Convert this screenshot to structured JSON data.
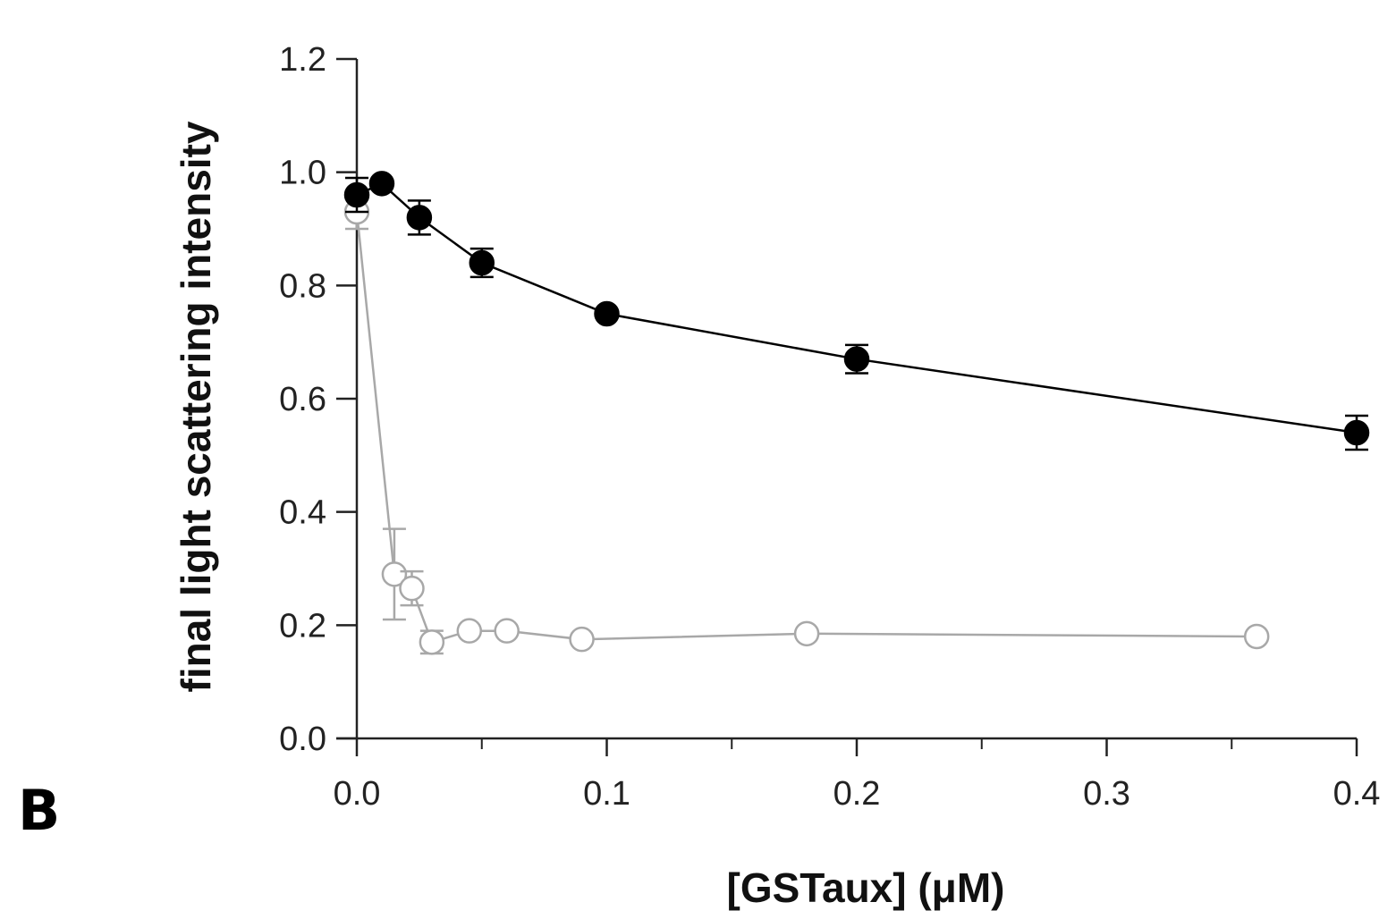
{
  "panel_label": "B",
  "chart_data": {
    "type": "scatter",
    "title": "",
    "xlabel": "[GSTaux] (μM)",
    "ylabel": "final light scattering intensity",
    "xlim": [
      0,
      0.4
    ],
    "ylim": [
      0,
      1.2
    ],
    "xticks": [
      0.0,
      0.1,
      0.2,
      0.3,
      0.4
    ],
    "xtick_labels": [
      "0.0",
      "0.1",
      "0.2",
      "0.3",
      "0.4"
    ],
    "yticks": [
      0.0,
      0.2,
      0.4,
      0.6,
      0.8,
      1.0,
      1.2
    ],
    "ytick_labels": [
      "0.0",
      "0.2",
      "0.4",
      "0.6",
      "0.8",
      "1.0",
      "1.2"
    ],
    "grid": false,
    "legend": "none",
    "series": [
      {
        "marker": "filled-circle",
        "color": "#000000",
        "connected": true,
        "x": [
          0.0,
          0.01,
          0.025,
          0.05,
          0.1,
          0.2,
          0.4
        ],
        "y": [
          0.96,
          0.98,
          0.92,
          0.84,
          0.75,
          0.67,
          0.54
        ],
        "error": [
          0.03,
          0.0,
          0.03,
          0.025,
          0.0,
          0.025,
          0.03
        ]
      },
      {
        "marker": "open-circle",
        "color": "#a8a8a8",
        "connected": true,
        "x": [
          0.0,
          0.015,
          0.022,
          0.03,
          0.045,
          0.06,
          0.09,
          0.18,
          0.36
        ],
        "y": [
          0.93,
          0.29,
          0.265,
          0.17,
          0.19,
          0.19,
          0.175,
          0.185,
          0.18
        ],
        "error": [
          0.03,
          0.08,
          0.03,
          0.02,
          0.0,
          0.0,
          0.0,
          0.0,
          0.0
        ]
      }
    ]
  }
}
